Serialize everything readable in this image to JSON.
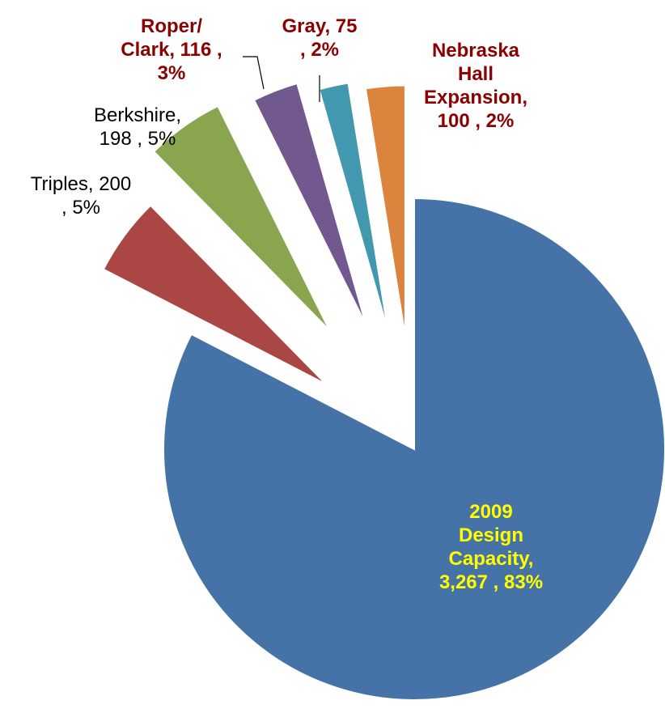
{
  "chart_data": {
    "type": "pie",
    "values": [
      3267,
      200,
      198,
      116,
      75,
      100
    ],
    "value_labels": [
      "2009\nDesign\nCapacity,\n3,267 , 83%",
      "Triples,  200\n, 5%",
      "Berkshire,\n198 , 5%",
      "Roper/\nClark,  116 ,\n3%",
      "Gray,  75\n, 2%",
      "Nebraska\nHall\nExpansion,\n100 , 2%"
    ],
    "colors": [
      "#4572a7",
      "#aa4643",
      "#89a54e",
      "#71588f",
      "#4198af",
      "#db843d"
    ],
    "label_colors": [
      "#ffff00",
      "#000000",
      "#000000",
      "#8b0000",
      "#8b0000",
      "#8b0000"
    ]
  }
}
